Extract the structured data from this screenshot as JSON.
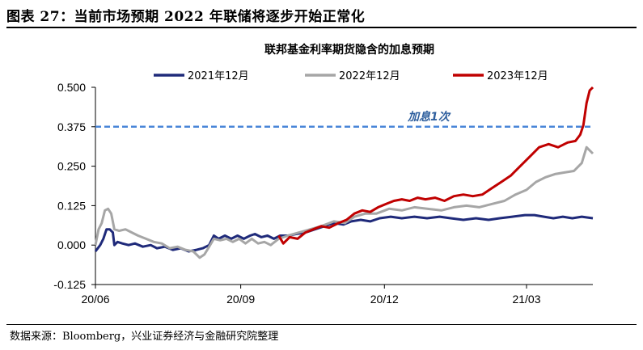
{
  "figure": {
    "title": "图表 27：当前市场预期 2022 年联储将逐步开始正常化",
    "source": "数据来源：Bloomberg，兴业证券经济与金融研究院整理"
  },
  "chart_data": {
    "type": "line",
    "title": "联邦基金利率期货隐含的加息预期",
    "xlabel": "",
    "ylabel": "",
    "ylim": [
      -0.125,
      0.5
    ],
    "yticks": [
      "0.500",
      "0.375",
      "0.250",
      "0.125",
      "0.000",
      "-0.125"
    ],
    "ytick_values": [
      0.5,
      0.375,
      0.25,
      0.125,
      0.0,
      -0.125
    ],
    "xticks": [
      "20/06",
      "20/09",
      "20/12",
      "21/03"
    ],
    "xtick_values": [
      "2020-06-01",
      "2020-09-01",
      "2020-12-01",
      "2021-03-01"
    ],
    "legend_position": "top",
    "grid": false,
    "reference_line": {
      "value": 0.375,
      "label": "加息1次",
      "color": "#4a86d8",
      "style": "dashed"
    },
    "series": [
      {
        "name": "2021年12月",
        "color": "#1f2a7a",
        "points": [
          [
            "2020-06-01",
            -0.02
          ],
          [
            "2020-06-04",
            0.0
          ],
          [
            "2020-06-06",
            0.02
          ],
          [
            "2020-06-08",
            0.05
          ],
          [
            "2020-06-10",
            0.05
          ],
          [
            "2020-06-12",
            0.04
          ],
          [
            "2020-06-13",
            0.0
          ],
          [
            "2020-06-15",
            0.01
          ],
          [
            "2020-06-18",
            0.005
          ],
          [
            "2020-06-22",
            0.0
          ],
          [
            "2020-06-26",
            0.005
          ],
          [
            "2020-07-01",
            -0.005
          ],
          [
            "2020-07-06",
            0.0
          ],
          [
            "2020-07-10",
            -0.01
          ],
          [
            "2020-07-15",
            -0.005
          ],
          [
            "2020-07-20",
            -0.015
          ],
          [
            "2020-07-25",
            -0.01
          ],
          [
            "2020-07-30",
            -0.02
          ],
          [
            "2020-08-04",
            -0.015
          ],
          [
            "2020-08-08",
            -0.01
          ],
          [
            "2020-08-12",
            0.0
          ],
          [
            "2020-08-15",
            0.03
          ],
          [
            "2020-08-18",
            0.02
          ],
          [
            "2020-08-22",
            0.03
          ],
          [
            "2020-08-26",
            0.02
          ],
          [
            "2020-08-30",
            0.03
          ],
          [
            "2020-09-03",
            0.02
          ],
          [
            "2020-09-07",
            0.03
          ],
          [
            "2020-09-10",
            0.035
          ],
          [
            "2020-09-14",
            0.025
          ],
          [
            "2020-09-18",
            0.03
          ],
          [
            "2020-09-22",
            0.02
          ],
          [
            "2020-09-26",
            0.03
          ],
          [
            "2020-10-01",
            0.03
          ],
          [
            "2020-10-06",
            0.035
          ],
          [
            "2020-10-12",
            0.04
          ],
          [
            "2020-10-18",
            0.05
          ],
          [
            "2020-10-24",
            0.06
          ],
          [
            "2020-10-30",
            0.07
          ],
          [
            "2020-11-05",
            0.065
          ],
          [
            "2020-11-10",
            0.075
          ],
          [
            "2020-11-16",
            0.08
          ],
          [
            "2020-11-22",
            0.075
          ],
          [
            "2020-11-28",
            0.085
          ],
          [
            "2020-12-05",
            0.09
          ],
          [
            "2020-12-12",
            0.085
          ],
          [
            "2020-12-20",
            0.09
          ],
          [
            "2020-12-28",
            0.085
          ],
          [
            "2021-01-05",
            0.09
          ],
          [
            "2021-01-12",
            0.085
          ],
          [
            "2021-01-20",
            0.08
          ],
          [
            "2021-01-28",
            0.085
          ],
          [
            "2021-02-05",
            0.08
          ],
          [
            "2021-02-12",
            0.085
          ],
          [
            "2021-02-20",
            0.09
          ],
          [
            "2021-02-28",
            0.095
          ],
          [
            "2021-03-06",
            0.095
          ],
          [
            "2021-03-12",
            0.09
          ],
          [
            "2021-03-18",
            0.085
          ],
          [
            "2021-03-24",
            0.09
          ],
          [
            "2021-03-30",
            0.085
          ],
          [
            "2021-04-05",
            0.09
          ],
          [
            "2021-04-12",
            0.085
          ]
        ]
      },
      {
        "name": "2022年12月",
        "color": "#a6a6a6",
        "points": [
          [
            "2020-06-01",
            0.0
          ],
          [
            "2020-06-03",
            0.05
          ],
          [
            "2020-06-05",
            0.07
          ],
          [
            "2020-06-07",
            0.11
          ],
          [
            "2020-06-09",
            0.115
          ],
          [
            "2020-06-11",
            0.1
          ],
          [
            "2020-06-13",
            0.05
          ],
          [
            "2020-06-16",
            0.045
          ],
          [
            "2020-06-20",
            0.05
          ],
          [
            "2020-06-24",
            0.04
          ],
          [
            "2020-06-28",
            0.03
          ],
          [
            "2020-07-03",
            0.02
          ],
          [
            "2020-07-08",
            0.01
          ],
          [
            "2020-07-13",
            0.005
          ],
          [
            "2020-07-18",
            -0.01
          ],
          [
            "2020-07-23",
            -0.005
          ],
          [
            "2020-07-28",
            -0.015
          ],
          [
            "2020-08-02",
            -0.02
          ],
          [
            "2020-08-06",
            -0.04
          ],
          [
            "2020-08-09",
            -0.03
          ],
          [
            "2020-08-12",
            -0.005
          ],
          [
            "2020-08-15",
            0.02
          ],
          [
            "2020-08-19",
            0.015
          ],
          [
            "2020-08-23",
            0.02
          ],
          [
            "2020-08-27",
            0.01
          ],
          [
            "2020-08-31",
            0.02
          ],
          [
            "2020-09-04",
            0.005
          ],
          [
            "2020-09-08",
            0.02
          ],
          [
            "2020-09-12",
            0.005
          ],
          [
            "2020-09-16",
            0.01
          ],
          [
            "2020-09-20",
            0.0
          ],
          [
            "2020-09-25",
            0.02
          ],
          [
            "2020-10-01",
            0.03
          ],
          [
            "2020-10-08",
            0.04
          ],
          [
            "2020-10-15",
            0.05
          ],
          [
            "2020-10-22",
            0.06
          ],
          [
            "2020-10-30",
            0.075
          ],
          [
            "2020-11-06",
            0.07
          ],
          [
            "2020-11-12",
            0.09
          ],
          [
            "2020-11-19",
            0.1
          ],
          [
            "2020-11-26",
            0.1
          ],
          [
            "2020-12-04",
            0.115
          ],
          [
            "2020-12-12",
            0.11
          ],
          [
            "2020-12-20",
            0.12
          ],
          [
            "2020-12-28",
            0.115
          ],
          [
            "2021-01-06",
            0.11
          ],
          [
            "2021-01-14",
            0.12
          ],
          [
            "2021-01-22",
            0.125
          ],
          [
            "2021-01-30",
            0.12
          ],
          [
            "2021-02-07",
            0.13
          ],
          [
            "2021-02-15",
            0.14
          ],
          [
            "2021-02-22",
            0.16
          ],
          [
            "2021-03-01",
            0.175
          ],
          [
            "2021-03-07",
            0.2
          ],
          [
            "2021-03-13",
            0.215
          ],
          [
            "2021-03-19",
            0.225
          ],
          [
            "2021-03-25",
            0.23
          ],
          [
            "2021-03-31",
            0.235
          ],
          [
            "2021-04-05",
            0.26
          ],
          [
            "2021-04-08",
            0.31
          ],
          [
            "2021-04-12",
            0.29
          ]
        ]
      },
      {
        "name": "2023年12月",
        "color": "#c00000",
        "points": [
          [
            "2020-09-25",
            0.03
          ],
          [
            "2020-09-28",
            0.005
          ],
          [
            "2020-10-02",
            0.025
          ],
          [
            "2020-10-07",
            0.02
          ],
          [
            "2020-10-12",
            0.04
          ],
          [
            "2020-10-17",
            0.05
          ],
          [
            "2020-10-22",
            0.06
          ],
          [
            "2020-10-27",
            0.055
          ],
          [
            "2020-11-02",
            0.07
          ],
          [
            "2020-11-07",
            0.08
          ],
          [
            "2020-11-12",
            0.1
          ],
          [
            "2020-11-17",
            0.11
          ],
          [
            "2020-11-22",
            0.105
          ],
          [
            "2020-11-27",
            0.12
          ],
          [
            "2020-12-02",
            0.13
          ],
          [
            "2020-12-07",
            0.14
          ],
          [
            "2020-12-12",
            0.145
          ],
          [
            "2020-12-17",
            0.14
          ],
          [
            "2020-12-22",
            0.15
          ],
          [
            "2020-12-27",
            0.145
          ],
          [
            "2021-01-02",
            0.15
          ],
          [
            "2021-01-08",
            0.14
          ],
          [
            "2021-01-14",
            0.155
          ],
          [
            "2021-01-20",
            0.16
          ],
          [
            "2021-01-26",
            0.155
          ],
          [
            "2021-02-01",
            0.16
          ],
          [
            "2021-02-07",
            0.18
          ],
          [
            "2021-02-13",
            0.2
          ],
          [
            "2021-02-19",
            0.22
          ],
          [
            "2021-02-25",
            0.25
          ],
          [
            "2021-03-03",
            0.28
          ],
          [
            "2021-03-09",
            0.31
          ],
          [
            "2021-03-15",
            0.32
          ],
          [
            "2021-03-21",
            0.31
          ],
          [
            "2021-03-27",
            0.325
          ],
          [
            "2021-04-01",
            0.33
          ],
          [
            "2021-04-04",
            0.35
          ],
          [
            "2021-04-06",
            0.38
          ],
          [
            "2021-04-08",
            0.45
          ],
          [
            "2021-04-10",
            0.49
          ],
          [
            "2021-04-12",
            0.5
          ]
        ]
      }
    ]
  }
}
